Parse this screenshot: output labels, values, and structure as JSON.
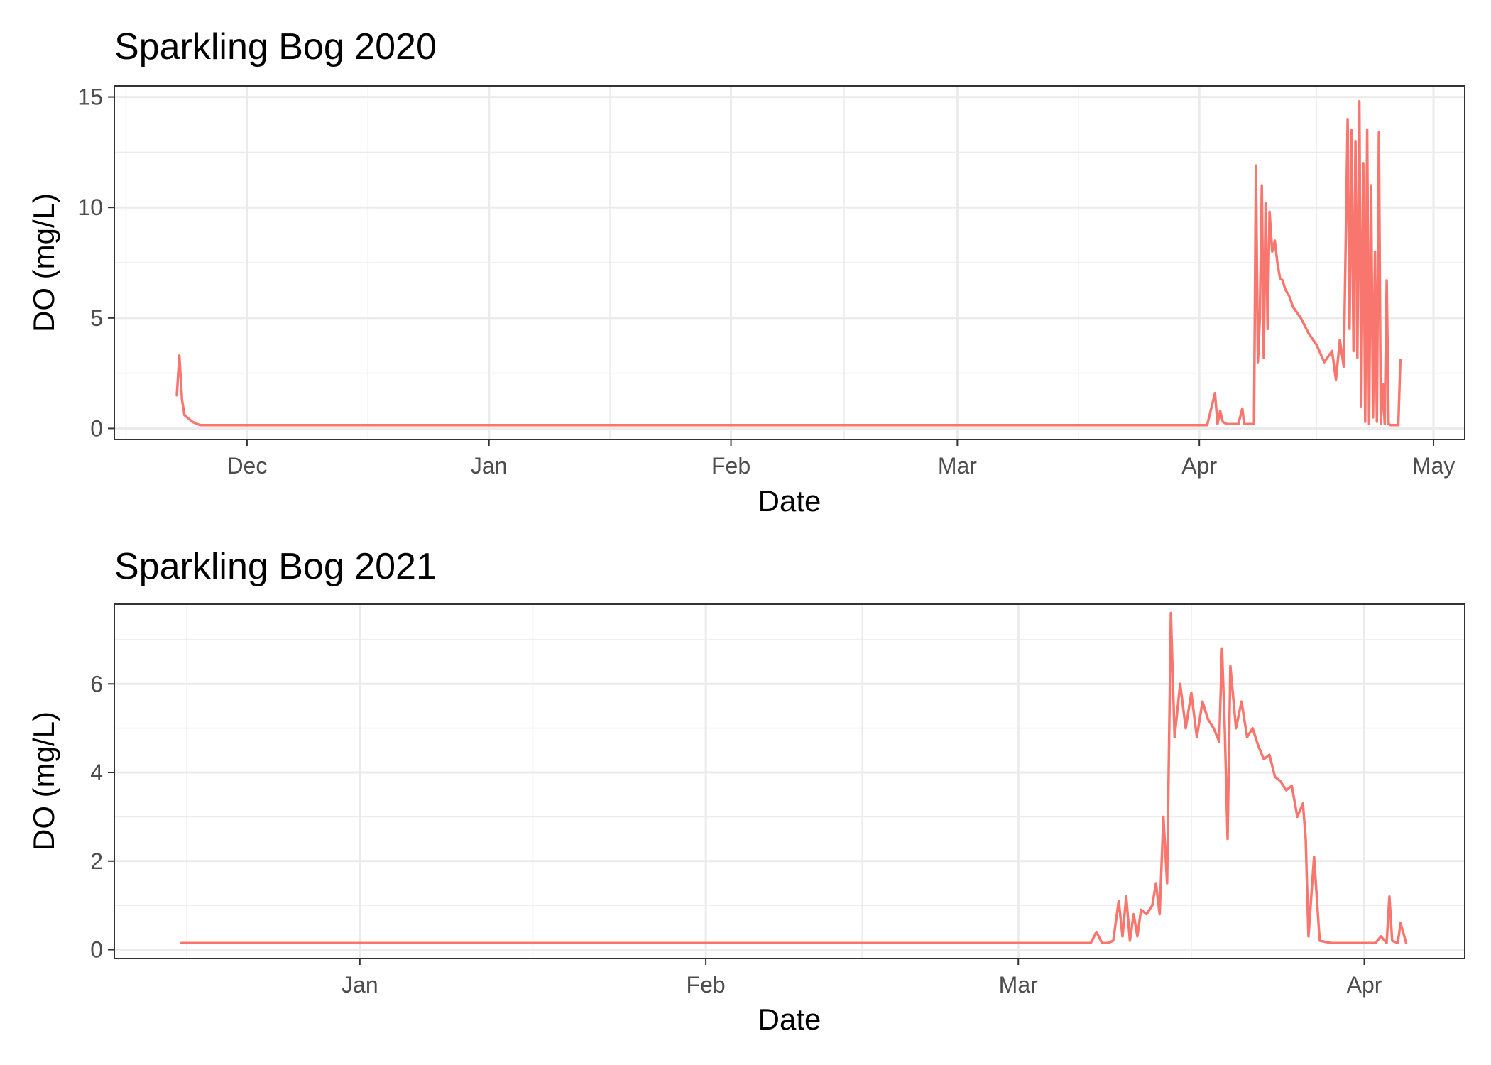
{
  "chart_data": [
    {
      "type": "line",
      "title": "Sparkling Bog 2020",
      "xlabel": "Date",
      "ylabel": "DO (mg/L)",
      "x_type": "date",
      "xlim": [
        "2019-11-14",
        "2020-05-05"
      ],
      "ylim": [
        -0.5,
        15.5
      ],
      "x_ticks": [
        {
          "date": "2019-12-01",
          "label": "Dec"
        },
        {
          "date": "2020-01-01",
          "label": "Jan"
        },
        {
          "date": "2020-02-01",
          "label": "Feb"
        },
        {
          "date": "2020-03-01",
          "label": "Mar"
        },
        {
          "date": "2020-04-01",
          "label": "Apr"
        },
        {
          "date": "2020-05-01",
          "label": "May"
        }
      ],
      "y_ticks": [
        0,
        5,
        10,
        15
      ],
      "grid": true,
      "series": [
        {
          "color": "#f8766d",
          "x": [
            "2019-11-22",
            "2019-11-22T08:00",
            "2019-11-22T16:00",
            "2019-11-23",
            "2019-11-24",
            "2019-11-25",
            "2019-12-15",
            "2020-01-15",
            "2020-02-15",
            "2020-03-15",
            "2020-04-02",
            "2020-04-03",
            "2020-04-03T08:00",
            "2020-04-03T16:00",
            "2020-04-04",
            "2020-04-04T12:00",
            "2020-04-05",
            "2020-04-06",
            "2020-04-06T12:00",
            "2020-04-06T18:00",
            "2020-04-07",
            "2020-04-08",
            "2020-04-08T06:00",
            "2020-04-08T12:00",
            "2020-04-08T18:00",
            "2020-04-09",
            "2020-04-09T06:00",
            "2020-04-09T12:00",
            "2020-04-09T18:00",
            "2020-04-10",
            "2020-04-10T08:00",
            "2020-04-10T16:00",
            "2020-04-11",
            "2020-04-11T08:00",
            "2020-04-11T16:00",
            "2020-04-12",
            "2020-04-12T12:00",
            "2020-04-13",
            "2020-04-14",
            "2020-04-15",
            "2020-04-16",
            "2020-04-17",
            "2020-04-18",
            "2020-04-18T12:00",
            "2020-04-19",
            "2020-04-19T12:00",
            "2020-04-20",
            "2020-04-20T06:00",
            "2020-04-20T12:00",
            "2020-04-20T18:00",
            "2020-04-21",
            "2020-04-21T06:00",
            "2020-04-21T12:00",
            "2020-04-21T18:00",
            "2020-04-22",
            "2020-04-22T06:00",
            "2020-04-22T12:00",
            "2020-04-22T18:00",
            "2020-04-23",
            "2020-04-23T06:00",
            "2020-04-23T12:00",
            "2020-04-23T18:00",
            "2020-04-24",
            "2020-04-24T06:00",
            "2020-04-24T12:00",
            "2020-04-24T18:00",
            "2020-04-25",
            "2020-04-25T06:00",
            "2020-04-25T12:00",
            "2020-04-25T18:00",
            "2020-04-26",
            "2020-04-26T12:00",
            "2020-04-26T18:00"
          ],
          "values": [
            1.5,
            3.3,
            1.3,
            0.6,
            0.3,
            0.15,
            0.15,
            0.15,
            0.15,
            0.15,
            0.15,
            1.6,
            0.2,
            0.8,
            0.3,
            0.2,
            0.2,
            0.2,
            0.9,
            0.2,
            0.2,
            0.2,
            11.9,
            3.0,
            5.0,
            11.0,
            3.2,
            10.2,
            4.5,
            9.8,
            8.0,
            8.5,
            7.5,
            6.8,
            6.7,
            6.3,
            6.0,
            5.5,
            5.0,
            4.3,
            3.8,
            3.0,
            3.5,
            2.2,
            4.0,
            2.8,
            14.0,
            4.5,
            13.5,
            3.5,
            13.0,
            3.2,
            14.8,
            1.0,
            12.0,
            0.3,
            13.5,
            0.2,
            11.0,
            0.5,
            8.0,
            0.3,
            13.4,
            0.2,
            2.0,
            0.2,
            6.7,
            0.2,
            0.15,
            0.15,
            0.15,
            0.15,
            3.1
          ]
        }
      ]
    },
    {
      "type": "line",
      "title": "Sparkling Bog 2021",
      "xlabel": "Date",
      "ylabel": "DO (mg/L)",
      "x_type": "date",
      "xlim": [
        "2020-12-10",
        "2021-04-10"
      ],
      "ylim": [
        -0.2,
        7.8
      ],
      "x_ticks": [
        {
          "date": "2021-01-01",
          "label": "Jan"
        },
        {
          "date": "2021-02-01",
          "label": "Feb"
        },
        {
          "date": "2021-03-01",
          "label": "Mar"
        },
        {
          "date": "2021-04-01",
          "label": "Apr"
        }
      ],
      "y_ticks": [
        0,
        2,
        4,
        6
      ],
      "grid": true,
      "series": [
        {
          "color": "#f8766d",
          "x": [
            "2020-12-16",
            "2021-01-15",
            "2021-02-15",
            "2021-03-07",
            "2021-03-07T12:00",
            "2021-03-08",
            "2021-03-08T12:00",
            "2021-03-09",
            "2021-03-09T12:00",
            "2021-03-10",
            "2021-03-10T08:00",
            "2021-03-10T16:00",
            "2021-03-11",
            "2021-03-11T08:00",
            "2021-03-11T16:00",
            "2021-03-12",
            "2021-03-12T12:00",
            "2021-03-13",
            "2021-03-13T08:00",
            "2021-03-13T16:00",
            "2021-03-14",
            "2021-03-14T08:00",
            "2021-03-14T16:00",
            "2021-03-15",
            "2021-03-15T12:00",
            "2021-03-16",
            "2021-03-16T12:00",
            "2021-03-17",
            "2021-03-17T12:00",
            "2021-03-18",
            "2021-03-18T12:00",
            "2021-03-19",
            "2021-03-19T06:00",
            "2021-03-19T12:00",
            "2021-03-19T18:00",
            "2021-03-20",
            "2021-03-20T12:00",
            "2021-03-21",
            "2021-03-21T12:00",
            "2021-03-22",
            "2021-03-22T12:00",
            "2021-03-23",
            "2021-03-23T12:00",
            "2021-03-24",
            "2021-03-24T12:00",
            "2021-03-25",
            "2021-03-25T12:00",
            "2021-03-26",
            "2021-03-26T12:00",
            "2021-03-26T18:00",
            "2021-03-27",
            "2021-03-27T12:00",
            "2021-03-28",
            "2021-03-29",
            "2021-03-30",
            "2021-03-31",
            "2021-04-01",
            "2021-04-02",
            "2021-04-02T12:00",
            "2021-04-03",
            "2021-04-03T06:00",
            "2021-04-03T12:00",
            "2021-04-04",
            "2021-04-04T06:00",
            "2021-04-04T18:00"
          ],
          "values": [
            0.15,
            0.15,
            0.15,
            0.15,
            0.15,
            0.4,
            0.15,
            0.15,
            0.2,
            1.1,
            0.3,
            1.2,
            0.2,
            0.8,
            0.3,
            0.9,
            0.8,
            1.0,
            1.5,
            0.8,
            3.0,
            1.5,
            7.6,
            4.8,
            6.0,
            5.0,
            5.8,
            4.8,
            5.6,
            5.2,
            5.0,
            4.7,
            6.8,
            5.0,
            2.5,
            6.4,
            5.0,
            5.6,
            4.8,
            5.0,
            4.6,
            4.3,
            4.4,
            3.9,
            3.8,
            3.6,
            3.7,
            3.0,
            3.3,
            2.5,
            0.3,
            2.1,
            0.2,
            0.15,
            0.15,
            0.15,
            0.15,
            0.15,
            0.3,
            0.15,
            1.2,
            0.2,
            0.15,
            0.6,
            0.15
          ]
        }
      ]
    }
  ]
}
